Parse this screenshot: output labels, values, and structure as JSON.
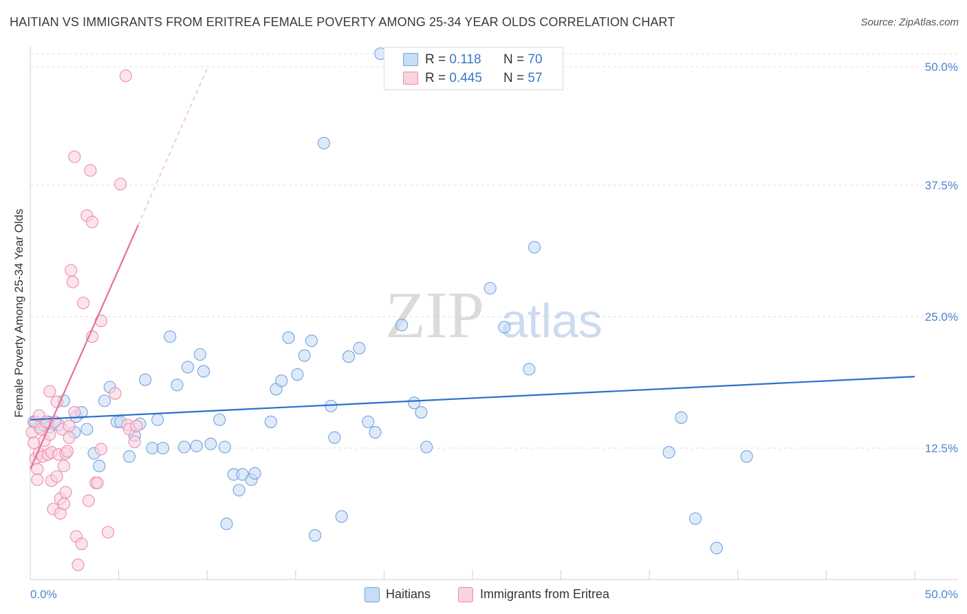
{
  "title": "HAITIAN VS IMMIGRANTS FROM ERITREA FEMALE POVERTY AMONG 25-34 YEAR OLDS CORRELATION CHART",
  "source": "Source: ZipAtlas.com",
  "watermark": {
    "zip": "ZIP",
    "atlas": "atlas"
  },
  "legend_top": {
    "rows": [
      {
        "r_label": "R =",
        "r_value": "0.118",
        "n_label": "N =",
        "n_value": "70",
        "color": "#a9c8ef"
      },
      {
        "r_label": "R =",
        "r_value": "0.445",
        "n_label": "N =",
        "n_value": "57",
        "color": "#f5b8cb"
      }
    ]
  },
  "legend_bottom": {
    "items": [
      {
        "label": "Haitians",
        "color": "#a9c8ef"
      },
      {
        "label": "Immigrants from Eritrea",
        "color": "#f5b8cb"
      }
    ]
  },
  "chart_data": {
    "type": "scatter",
    "title": "HAITIAN VS IMMIGRANTS FROM ERITREA FEMALE POVERTY AMONG 25-34 YEAR OLDS CORRELATION CHART",
    "xlabel": "",
    "ylabel": "Female Poverty Among 25-34 Year Olds",
    "xlim": [
      0,
      50
    ],
    "ylim": [
      0,
      50
    ],
    "x_tick_labels": [
      "0.0%",
      "50.0%"
    ],
    "y_tick_labels": [
      "12.5%",
      "25.0%",
      "37.5%",
      "50.0%"
    ],
    "y_ticks": [
      12.5,
      25.0,
      37.5,
      50.0
    ],
    "series": [
      {
        "name": "Haitians",
        "color": "#6fa3e0",
        "fill": "#c9dcf5",
        "line_color": "#2b6fcc",
        "trend": {
          "x": [
            0,
            50
          ],
          "y": [
            15.2,
            19.3
          ]
        },
        "points": [
          [
            0.2,
            15.0
          ],
          [
            0.5,
            14.5
          ],
          [
            0.8,
            14.6
          ],
          [
            1.0,
            15.0
          ],
          [
            1.1,
            14.5
          ],
          [
            1.6,
            14.7
          ],
          [
            1.9,
            17.0
          ],
          [
            2.5,
            14.0
          ],
          [
            2.6,
            15.5
          ],
          [
            2.9,
            15.9
          ],
          [
            3.2,
            14.3
          ],
          [
            3.6,
            12.0
          ],
          [
            3.9,
            10.8
          ],
          [
            4.2,
            17.0
          ],
          [
            4.5,
            18.3
          ],
          [
            4.9,
            15.0
          ],
          [
            5.1,
            15.0
          ],
          [
            5.6,
            11.7
          ],
          [
            5.9,
            13.7
          ],
          [
            6.2,
            14.8
          ],
          [
            6.5,
            19.0
          ],
          [
            6.9,
            12.5
          ],
          [
            7.2,
            15.2
          ],
          [
            7.5,
            12.5
          ],
          [
            7.9,
            23.1
          ],
          [
            8.3,
            18.5
          ],
          [
            8.7,
            12.6
          ],
          [
            8.9,
            20.2
          ],
          [
            9.4,
            12.7
          ],
          [
            9.6,
            21.4
          ],
          [
            9.8,
            19.8
          ],
          [
            10.2,
            12.9
          ],
          [
            10.7,
            15.2
          ],
          [
            11.0,
            12.6
          ],
          [
            11.1,
            5.3
          ],
          [
            11.5,
            10.0
          ],
          [
            11.8,
            8.5
          ],
          [
            12.0,
            10.0
          ],
          [
            12.5,
            9.5
          ],
          [
            12.7,
            10.1
          ],
          [
            13.6,
            15.0
          ],
          [
            13.9,
            18.1
          ],
          [
            14.2,
            18.9
          ],
          [
            14.6,
            23.0
          ],
          [
            15.1,
            19.5
          ],
          [
            15.5,
            21.3
          ],
          [
            15.9,
            22.7
          ],
          [
            16.1,
            4.2
          ],
          [
            16.6,
            41.5
          ],
          [
            17.0,
            16.5
          ],
          [
            17.2,
            13.5
          ],
          [
            17.6,
            6.0
          ],
          [
            18.0,
            21.2
          ],
          [
            18.6,
            22.0
          ],
          [
            19.1,
            15.0
          ],
          [
            19.5,
            14.0
          ],
          [
            19.8,
            50.0
          ],
          [
            21.0,
            24.2
          ],
          [
            21.7,
            16.8
          ],
          [
            22.1,
            15.9
          ],
          [
            22.4,
            12.6
          ],
          [
            26.0,
            27.7
          ],
          [
            26.8,
            24.0
          ],
          [
            28.2,
            20.0
          ],
          [
            28.5,
            31.6
          ],
          [
            36.1,
            12.1
          ],
          [
            36.8,
            15.4
          ],
          [
            37.6,
            5.8
          ],
          [
            38.8,
            3.0
          ],
          [
            40.5,
            11.7
          ]
        ]
      },
      {
        "name": "Immigrants from Eritrea",
        "color": "#ee8aa9",
        "fill": "#f9d3df",
        "line_color": "#e4709a",
        "trend": {
          "x": [
            0,
            6.1
          ],
          "y": [
            10.5,
            33.7
          ]
        },
        "trend_ext": {
          "x": [
            6.1,
            10.0
          ],
          "y": [
            33.7,
            48.6
          ]
        },
        "points": [
          [
            0.1,
            14.0
          ],
          [
            0.2,
            13.0
          ],
          [
            0.3,
            15.0
          ],
          [
            0.3,
            11.5
          ],
          [
            0.4,
            10.5
          ],
          [
            0.4,
            9.5
          ],
          [
            0.5,
            12.0
          ],
          [
            0.5,
            15.6
          ],
          [
            0.6,
            14.3
          ],
          [
            0.7,
            11.7
          ],
          [
            0.8,
            13.2
          ],
          [
            0.9,
            15.0
          ],
          [
            1.0,
            11.9
          ],
          [
            1.1,
            17.9
          ],
          [
            1.1,
            13.8
          ],
          [
            1.2,
            12.1
          ],
          [
            1.2,
            9.4
          ],
          [
            1.3,
            6.7
          ],
          [
            1.4,
            15.0
          ],
          [
            1.5,
            9.8
          ],
          [
            1.5,
            16.9
          ],
          [
            1.6,
            11.9
          ],
          [
            1.7,
            6.3
          ],
          [
            1.7,
            7.7
          ],
          [
            1.8,
            14.3
          ],
          [
            1.9,
            7.2
          ],
          [
            1.9,
            10.8
          ],
          [
            2.0,
            8.3
          ],
          [
            2.0,
            12.0
          ],
          [
            2.1,
            12.2
          ],
          [
            2.2,
            14.6
          ],
          [
            2.2,
            13.5
          ],
          [
            2.3,
            29.4
          ],
          [
            2.4,
            28.3
          ],
          [
            2.5,
            40.2
          ],
          [
            2.5,
            15.9
          ],
          [
            2.6,
            4.1
          ],
          [
            2.7,
            1.4
          ],
          [
            2.9,
            3.4
          ],
          [
            3.0,
            26.3
          ],
          [
            3.2,
            34.6
          ],
          [
            3.3,
            7.5
          ],
          [
            3.4,
            38.9
          ],
          [
            3.5,
            34.0
          ],
          [
            3.5,
            23.1
          ],
          [
            3.7,
            9.2
          ],
          [
            3.8,
            9.2
          ],
          [
            4.0,
            24.6
          ],
          [
            4.0,
            12.4
          ],
          [
            4.4,
            4.5
          ],
          [
            4.8,
            17.7
          ],
          [
            5.1,
            37.6
          ],
          [
            5.4,
            47.9
          ],
          [
            5.5,
            14.7
          ],
          [
            5.6,
            14.3
          ],
          [
            5.9,
            13.1
          ],
          [
            6.0,
            14.6
          ]
        ]
      }
    ]
  }
}
